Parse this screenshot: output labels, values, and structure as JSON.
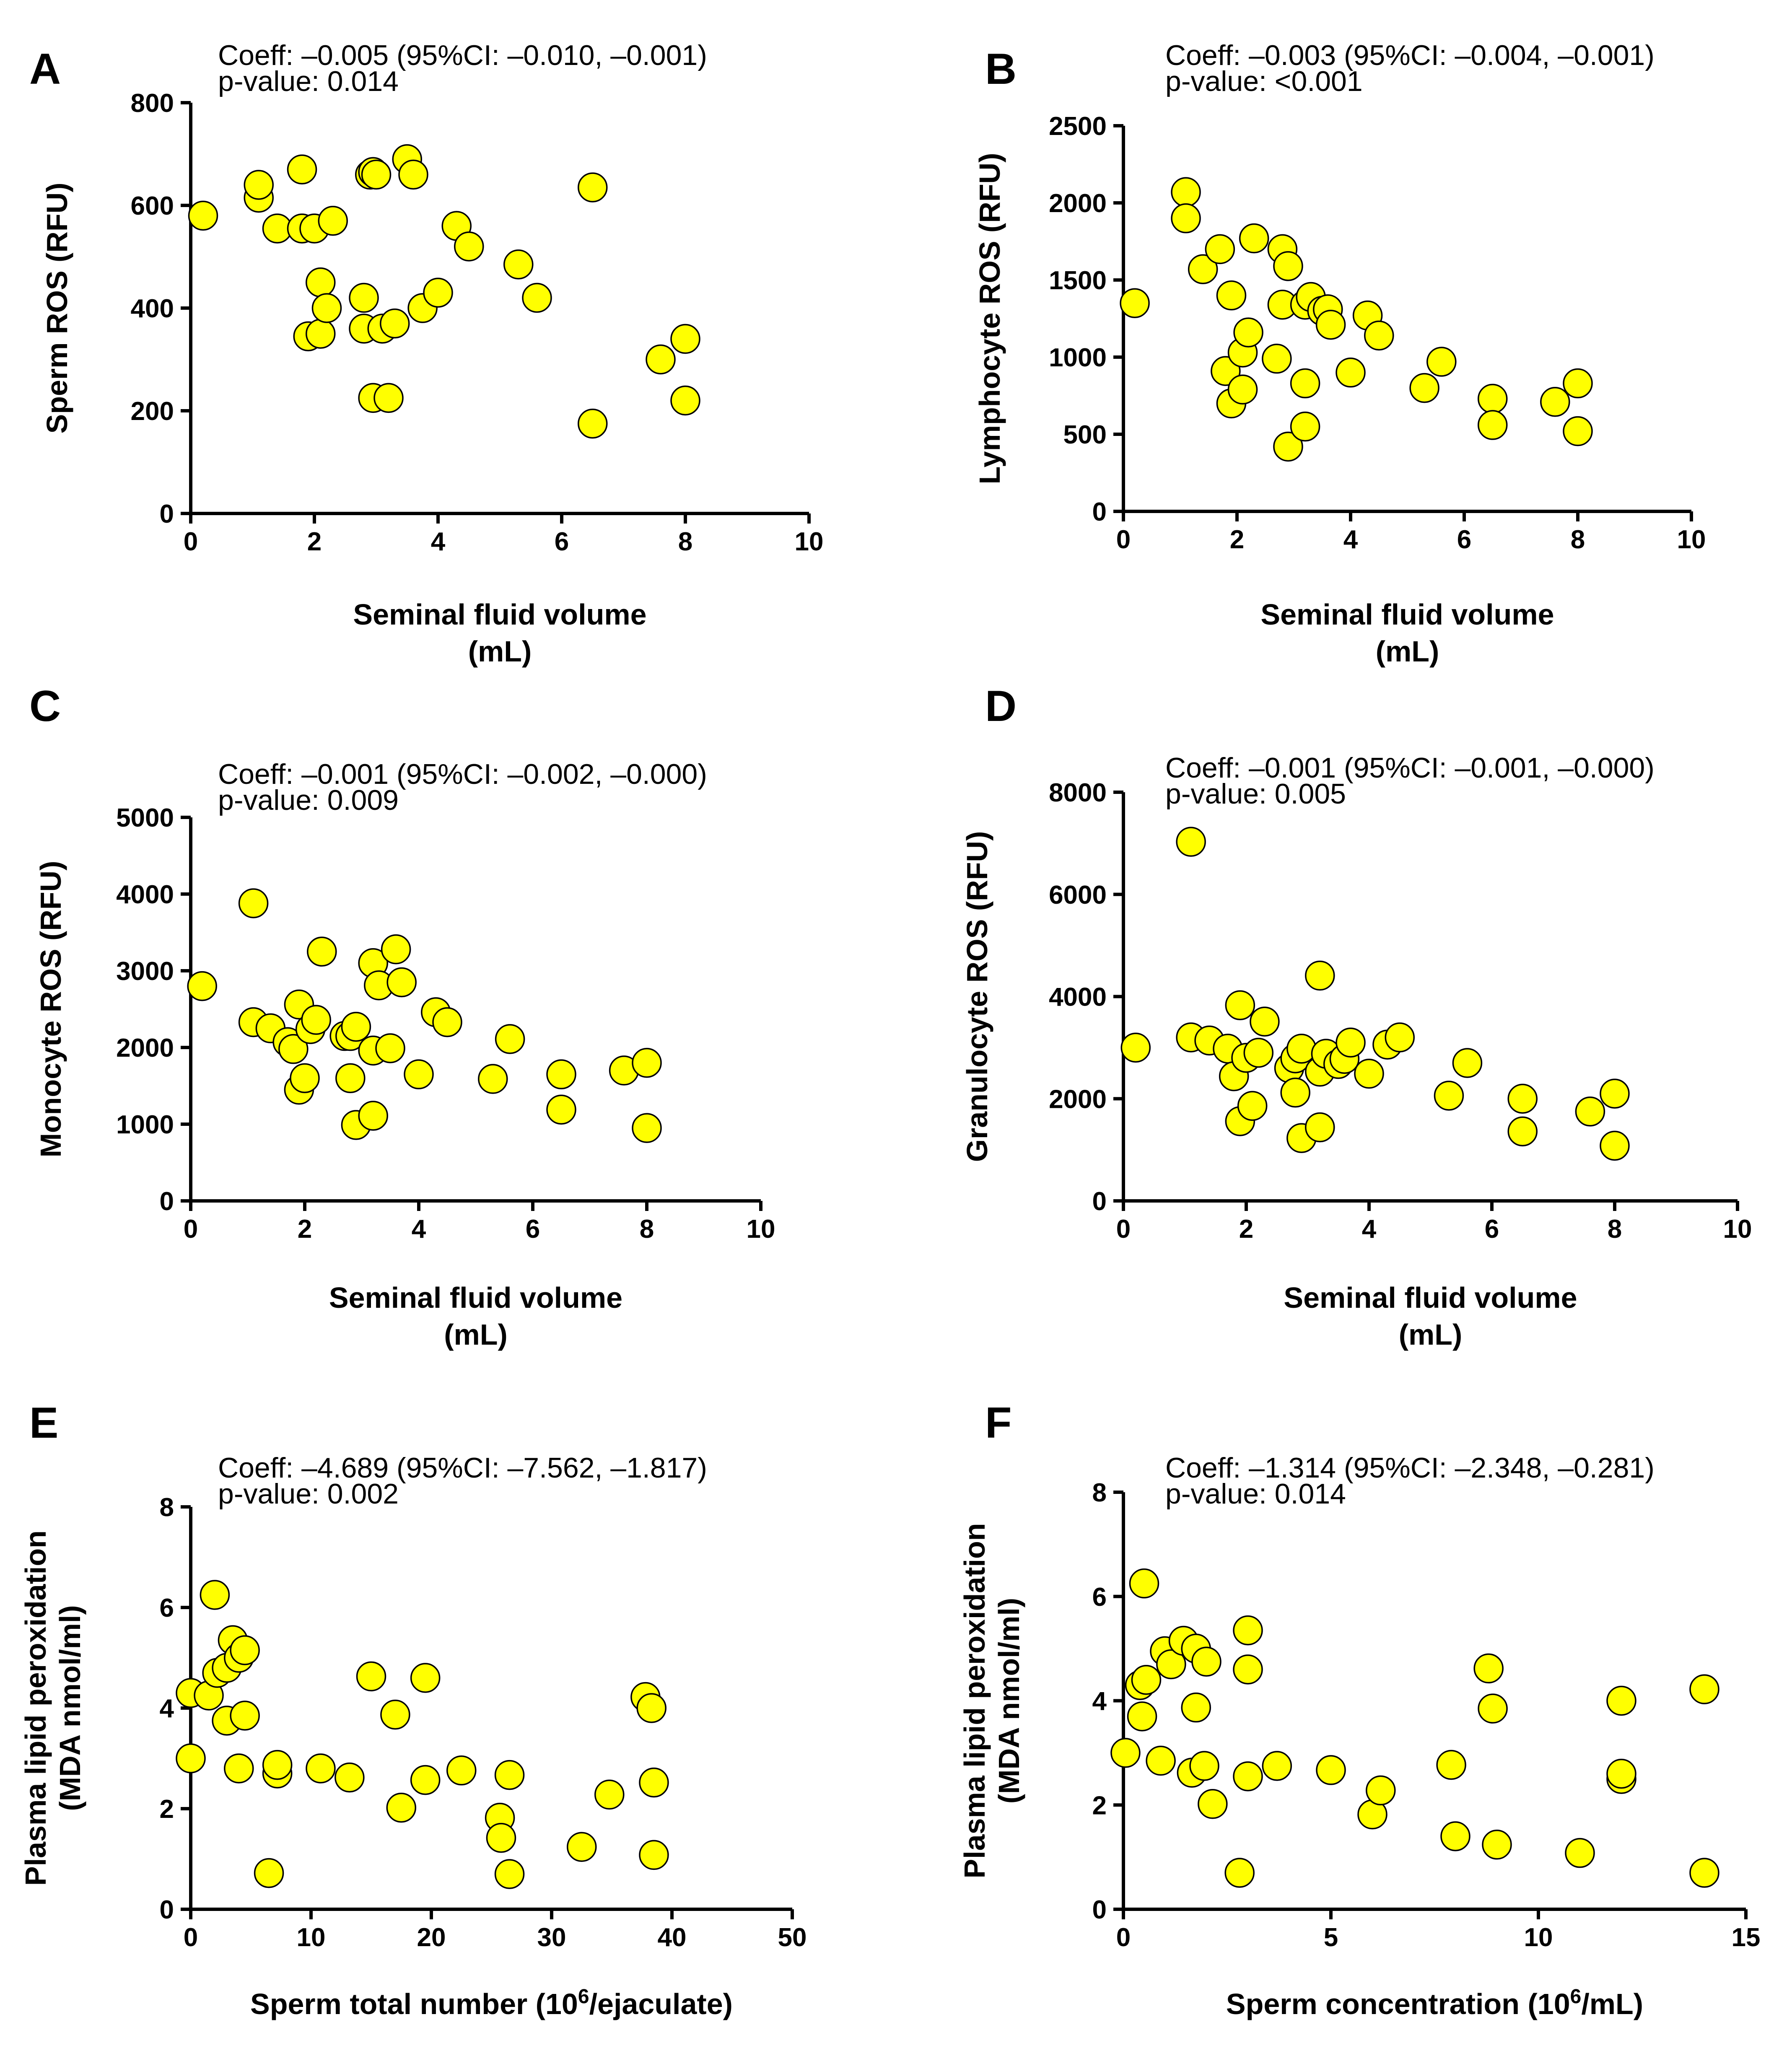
{
  "colors": {
    "point_fill": "#ffff00",
    "point_stroke": "#000000",
    "axis": "#000000"
  },
  "chart_data": [
    {
      "panel": "A",
      "type": "scatter",
      "coeff_text": "Coeff: –0.005 (95%CI: –0.010, –0.001)",
      "pvalue_text": "p-value: 0.014",
      "ylabel": [
        "Sperm ROS (RFU)"
      ],
      "xlabel": [
        "Seminal fluid volume",
        "(mL)"
      ],
      "xlim": [
        0,
        10
      ],
      "ylim": [
        0,
        800
      ],
      "xticks": [
        "0",
        "2",
        "4",
        "6",
        "8",
        "10"
      ],
      "yticks": [
        "0",
        "200",
        "400",
        "600",
        "800"
      ],
      "x": [
        0.2,
        1.1,
        1.1,
        1.4,
        1.8,
        1.8,
        1.9,
        2.0,
        2.1,
        2.1,
        2.2,
        2.3,
        2.8,
        2.8,
        2.9,
        2.95,
        2.95,
        3.0,
        3.1,
        3.2,
        3.3,
        3.5,
        3.6,
        3.75,
        4.0,
        4.3,
        4.5,
        5.3,
        5.6,
        6.5,
        6.5,
        7.6,
        8.0,
        8.0
      ],
      "y": [
        580,
        615,
        640,
        555,
        555,
        670,
        345,
        555,
        450,
        350,
        400,
        570,
        360,
        420,
        660,
        225,
        665,
        660,
        360,
        225,
        370,
        690,
        660,
        400,
        430,
        560,
        520,
        485,
        420,
        635,
        175,
        300,
        340,
        220
      ]
    },
    {
      "panel": "B",
      "type": "scatter",
      "coeff_text": "Coeff: –0.003 (95%CI: –0.004, –0.001)",
      "pvalue_text": "p-value: <0.001",
      "ylabel": [
        "Lymphocyte ROS (RFU)"
      ],
      "xlabel": [
        "Seminal fluid volume",
        "(mL)"
      ],
      "xlim": [
        0,
        10
      ],
      "ylim": [
        0,
        2500
      ],
      "xticks": [
        "0",
        "2",
        "4",
        "6",
        "8",
        "10"
      ],
      "yticks": [
        "0",
        "500",
        "1000",
        "1500",
        "2000",
        "2500"
      ],
      "x": [
        0.2,
        1.1,
        1.1,
        1.4,
        1.7,
        1.8,
        1.9,
        1.9,
        2.1,
        2.1,
        2.2,
        2.3,
        2.7,
        2.8,
        2.8,
        2.9,
        2.9,
        3.2,
        3.2,
        3.2,
        3.3,
        3.5,
        3.6,
        3.65,
        4.0,
        4.3,
        4.5,
        5.3,
        5.6,
        6.5,
        6.5,
        7.6,
        8.0,
        8.0
      ],
      "y": [
        1350,
        2070,
        1900,
        1570,
        1700,
        910,
        1400,
        700,
        1030,
        790,
        1160,
        1770,
        990,
        1700,
        1340,
        420,
        1590,
        1340,
        830,
        550,
        1390,
        1300,
        1310,
        1210,
        900,
        1270,
        1140,
        800,
        970,
        730,
        560,
        710,
        830,
        520
      ]
    },
    {
      "panel": "C",
      "type": "scatter",
      "coeff_text": "Coeff: –0.001 (95%CI: –0.002, –0.000)",
      "pvalue_text": "p-value: 0.009",
      "ylabel": [
        "Monocyte ROS (RFU)"
      ],
      "xlabel": [
        "Seminal fluid volume",
        "(mL)"
      ],
      "xlim": [
        0,
        10
      ],
      "ylim": [
        0,
        5000
      ],
      "xticks": [
        "0",
        "2",
        "4",
        "6",
        "8",
        "10"
      ],
      "yticks": [
        "0",
        "1000",
        "2000",
        "3000",
        "4000",
        "5000"
      ],
      "x": [
        0.2,
        1.1,
        1.1,
        1.4,
        1.7,
        1.8,
        1.9,
        1.9,
        2.0,
        2.1,
        2.2,
        2.3,
        2.7,
        2.8,
        2.8,
        2.9,
        2.9,
        3.2,
        3.2,
        3.2,
        3.3,
        3.5,
        3.6,
        3.7,
        4.0,
        4.3,
        4.5,
        5.3,
        5.6,
        6.5,
        6.5,
        7.6,
        8.0,
        8.0
      ],
      "y": [
        2800,
        3880,
        2330,
        2250,
        2070,
        1980,
        1450,
        2560,
        1600,
        2240,
        2360,
        3250,
        2150,
        2150,
        1600,
        990,
        2270,
        3100,
        1960,
        1110,
        2810,
        1990,
        3280,
        2850,
        1650,
        2460,
        2330,
        1590,
        2110,
        1650,
        1190,
        1700,
        1800,
        950
      ]
    },
    {
      "panel": "D",
      "type": "scatter",
      "coeff_text": "Coeff: –0.001 (95%CI: –0.001, –0.000)",
      "pvalue_text": "p-value: 0.005",
      "ylabel": [
        "Granulocyte ROS (RFU)"
      ],
      "xlabel": [
        "Seminal fluid volume",
        "(mL)"
      ],
      "xlim": [
        0,
        10
      ],
      "ylim": [
        0,
        8000
      ],
      "xticks": [
        "0",
        "2",
        "4",
        "6",
        "8",
        "10"
      ],
      "yticks": [
        "0",
        "2000",
        "4000",
        "6000",
        "8000"
      ],
      "x": [
        0.2,
        1.1,
        1.1,
        1.4,
        1.7,
        1.8,
        1.9,
        1.9,
        2.0,
        2.1,
        2.2,
        2.3,
        2.7,
        2.8,
        2.8,
        2.9,
        2.9,
        3.2,
        3.2,
        3.2,
        3.3,
        3.5,
        3.6,
        3.7,
        4.0,
        4.3,
        4.5,
        5.3,
        5.6,
        6.5,
        6.5,
        7.6,
        8.0,
        8.0
      ],
      "y": [
        3000,
        7030,
        3200,
        3140,
        2980,
        2440,
        1560,
        3830,
        2800,
        1860,
        2900,
        3510,
        2600,
        2790,
        2120,
        1230,
        2980,
        4410,
        2530,
        1440,
        2880,
        2680,
        2780,
        3100,
        2490,
        3060,
        3200,
        2060,
        2700,
        2000,
        1360,
        1750,
        2100,
        1080
      ]
    },
    {
      "panel": "E",
      "type": "scatter",
      "coeff_text": "Coeff: –4.689 (95%CI: –7.562, –1.817)",
      "pvalue_text": "p-value: 0.002",
      "ylabel": [
        "Plasma lipid peroxidation",
        "(MDA nmol/ml)"
      ],
      "xlabel_parts": [
        [
          "Sperm total number (10",
          "normal"
        ],
        [
          "6",
          "sup"
        ],
        [
          "/ejaculate)",
          "normal"
        ]
      ],
      "xlim": [
        0,
        50
      ],
      "ylim": [
        0,
        8
      ],
      "xticks": [
        "0",
        "10",
        "20",
        "30",
        "40",
        "50"
      ],
      "yticks": [
        "0",
        "2",
        "4",
        "6",
        "8"
      ],
      "x": [
        0.0,
        0.0,
        1.5,
        2.0,
        2.2,
        3.0,
        3.0,
        3.5,
        4.0,
        4.0,
        4.5,
        4.5,
        6.5,
        7.2,
        7.2,
        10.8,
        13.2,
        15.0,
        17.0,
        17.5,
        19.5,
        19.5,
        22.5,
        25.7,
        25.8,
        26.5,
        26.5,
        32.5,
        34.8,
        37.8,
        38.3,
        38.5,
        38.5
      ],
      "y": [
        3.0,
        4.3,
        4.25,
        6.25,
        4.7,
        3.75,
        4.8,
        5.35,
        5.0,
        2.8,
        3.85,
        5.15,
        0.72,
        2.7,
        2.87,
        2.8,
        2.62,
        4.63,
        3.87,
        2.02,
        4.6,
        2.57,
        2.76,
        1.82,
        1.42,
        2.67,
        0.7,
        1.24,
        2.28,
        4.22,
        4.0,
        2.52,
        1.08
      ]
    },
    {
      "panel": "F",
      "type": "scatter",
      "coeff_text": "Coeff: –1.314 (95%CI: –2.348, –0.281)",
      "pvalue_text": "p-value: 0.014",
      "ylabel": [
        "Plasma lipid peroxidation",
        "(MDA nmol/ml)"
      ],
      "xlabel_parts": [
        [
          "Sperm concentration (10",
          "normal"
        ],
        [
          "6",
          "sup"
        ],
        [
          "/mL)",
          "normal"
        ]
      ],
      "xlim": [
        0,
        15
      ],
      "ylim": [
        0,
        8
      ],
      "xticks": [
        "0",
        "5",
        "10",
        "15"
      ],
      "yticks": [
        "0",
        "2",
        "4",
        "6",
        "8"
      ],
      "x": [
        0.05,
        0.4,
        0.45,
        0.5,
        0.55,
        0.9,
        1.0,
        1.15,
        1.45,
        1.65,
        1.75,
        1.75,
        1.95,
        2.0,
        2.15,
        2.8,
        3.0,
        3.0,
        3.0,
        3.7,
        5.0,
        6.0,
        6.2,
        7.9,
        8.0,
        8.8,
        8.9,
        9.0,
        11.0,
        12.0,
        12.0,
        12.0,
        14.0,
        14.0
      ],
      "y": [
        3.0,
        4.3,
        3.7,
        6.25,
        4.4,
        2.85,
        4.95,
        4.7,
        5.15,
        2.62,
        3.87,
        5.0,
        2.75,
        4.75,
        2.02,
        0.7,
        5.35,
        4.6,
        2.55,
        2.75,
        2.67,
        1.82,
        2.28,
        2.77,
        1.4,
        4.62,
        3.85,
        1.24,
        1.08,
        4.0,
        2.5,
        2.6,
        4.22,
        0.7
      ]
    }
  ]
}
